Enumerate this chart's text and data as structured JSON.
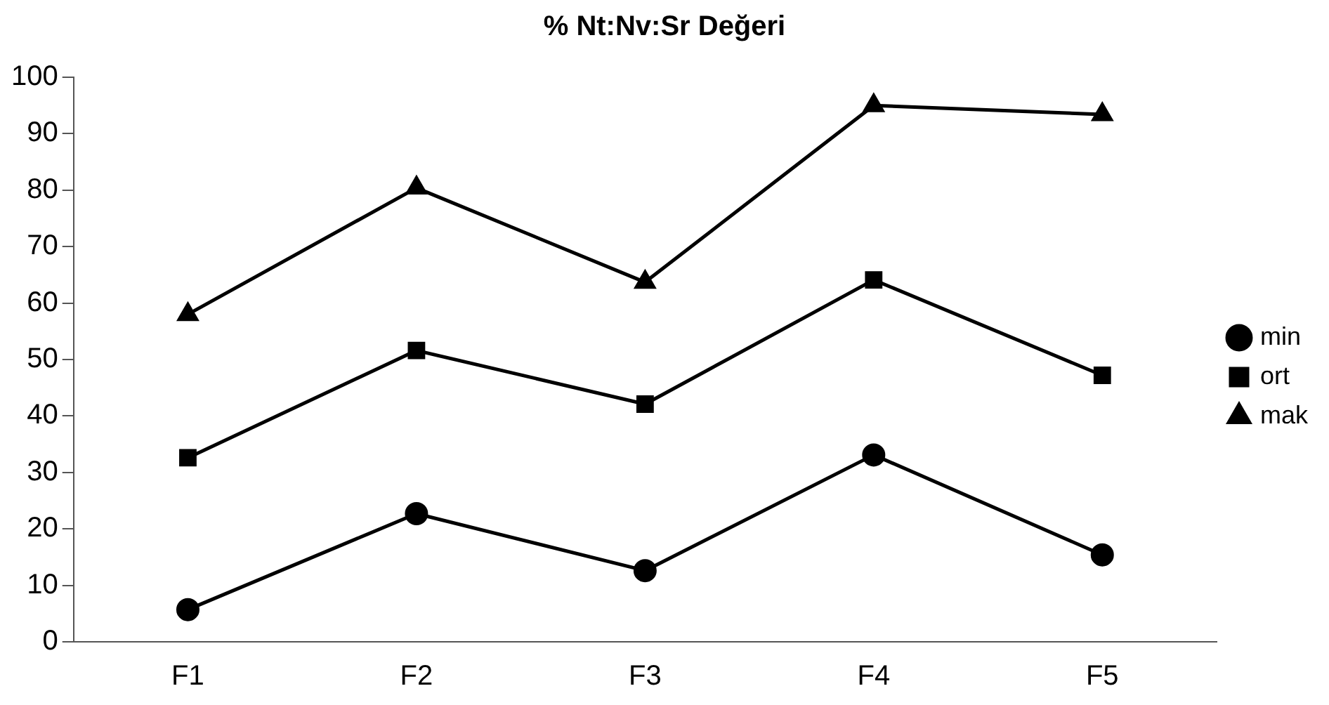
{
  "chart_data": {
    "type": "line",
    "title": "% Nt:Nv:Sr Değeri",
    "categories": [
      "F1",
      "F2",
      "F3",
      "F4",
      "F5"
    ],
    "series": [
      {
        "name": "min",
        "color": "#000000",
        "marker": "circle",
        "values": [
          5.7,
          22.7,
          12.6,
          33.1,
          15.4
        ]
      },
      {
        "name": "ort",
        "color": "#000000",
        "marker": "square",
        "values": [
          32.6,
          51.6,
          42.1,
          64.1,
          47.2
        ]
      },
      {
        "name": "mak",
        "color": "#000000",
        "marker": "triangle",
        "values": [
          58,
          80.4,
          63.7,
          95,
          93.4
        ]
      }
    ],
    "ylim": [
      0,
      100
    ],
    "yticks": [
      0,
      10,
      20,
      30,
      40,
      50,
      60,
      70,
      80,
      90,
      100
    ],
    "grid": false,
    "legend": "right",
    "line_style": "solid"
  }
}
